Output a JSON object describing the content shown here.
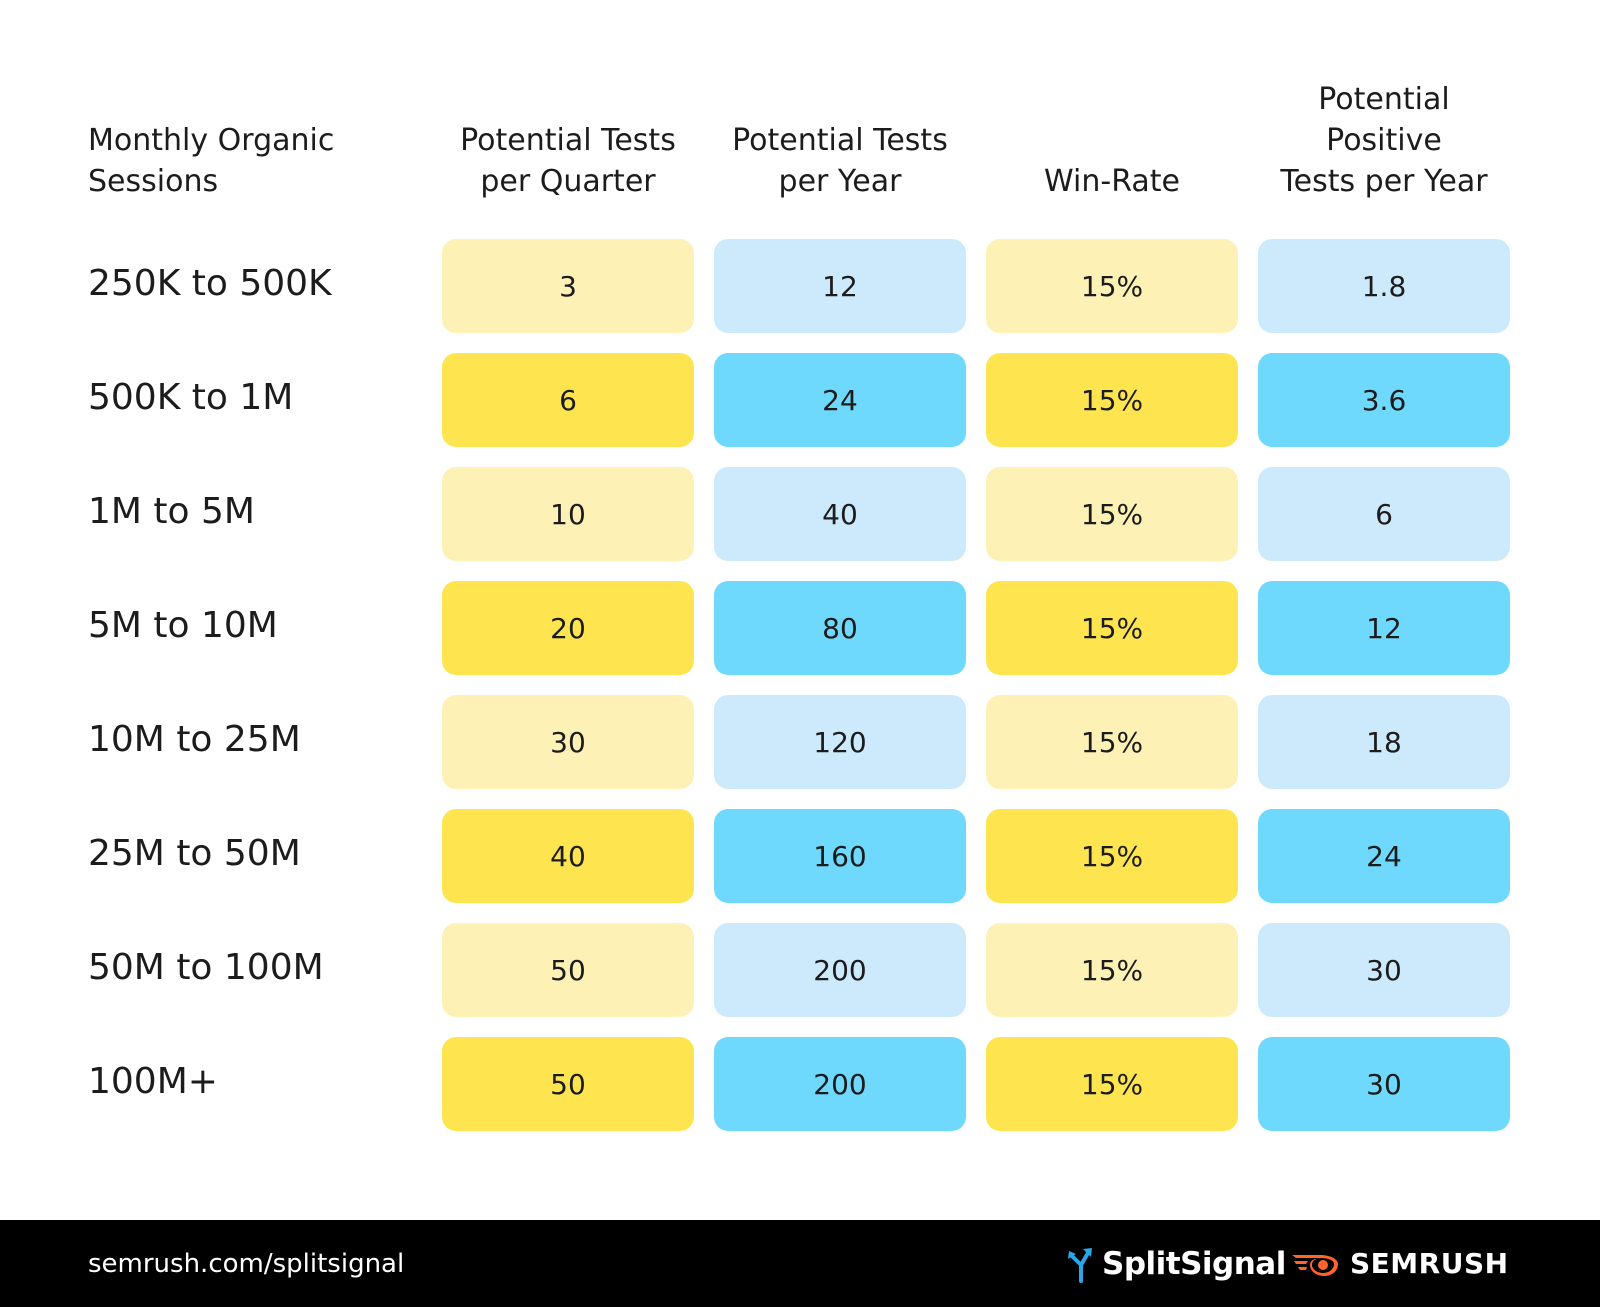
{
  "chart_data": {
    "type": "table",
    "columns": [
      "Monthly Organic\nSessions",
      "Potential Tests\nper Quarter",
      "Potential Tests\nper Year",
      "Win-Rate",
      "Potential Positive\nTests per Year"
    ],
    "rows": [
      {
        "label": "250K to 500K",
        "values": [
          "3",
          "12",
          "15%",
          "1.8"
        ]
      },
      {
        "label": "500K to 1M",
        "values": [
          "6",
          "24",
          "15%",
          "3.6"
        ]
      },
      {
        "label": "1M to 5M",
        "values": [
          "10",
          "40",
          "15%",
          "6"
        ]
      },
      {
        "label": "5M to 10M",
        "values": [
          "20",
          "80",
          "15%",
          "12"
        ]
      },
      {
        "label": "10M to 25M",
        "values": [
          "30",
          "120",
          "15%",
          "18"
        ]
      },
      {
        "label": "25M to 50M",
        "values": [
          "40",
          "160",
          "15%",
          "24"
        ]
      },
      {
        "label": "50M to 100M",
        "values": [
          "50",
          "200",
          "15%",
          "30"
        ]
      },
      {
        "label": "100M+",
        "values": [
          "50",
          "200",
          "15%",
          "30"
        ]
      }
    ]
  },
  "colors": {
    "yellow_light": "#fdf1b5",
    "yellow_strong": "#fee54f",
    "blue_light": "#cceafc",
    "blue_strong": "#6fd9fd",
    "footer_bg": "#000000",
    "semrush_orange": "#ff642d",
    "splitsignal_blue": "#2aa6e8"
  },
  "footer": {
    "url": "semrush.com/splitsignal",
    "splitsignal": {
      "name": "SplitSignal",
      "icon": "splitsignal-arrows-icon"
    },
    "semrush": {
      "name": "SEMRUSH",
      "icon": "semrush-fireball-icon"
    }
  }
}
